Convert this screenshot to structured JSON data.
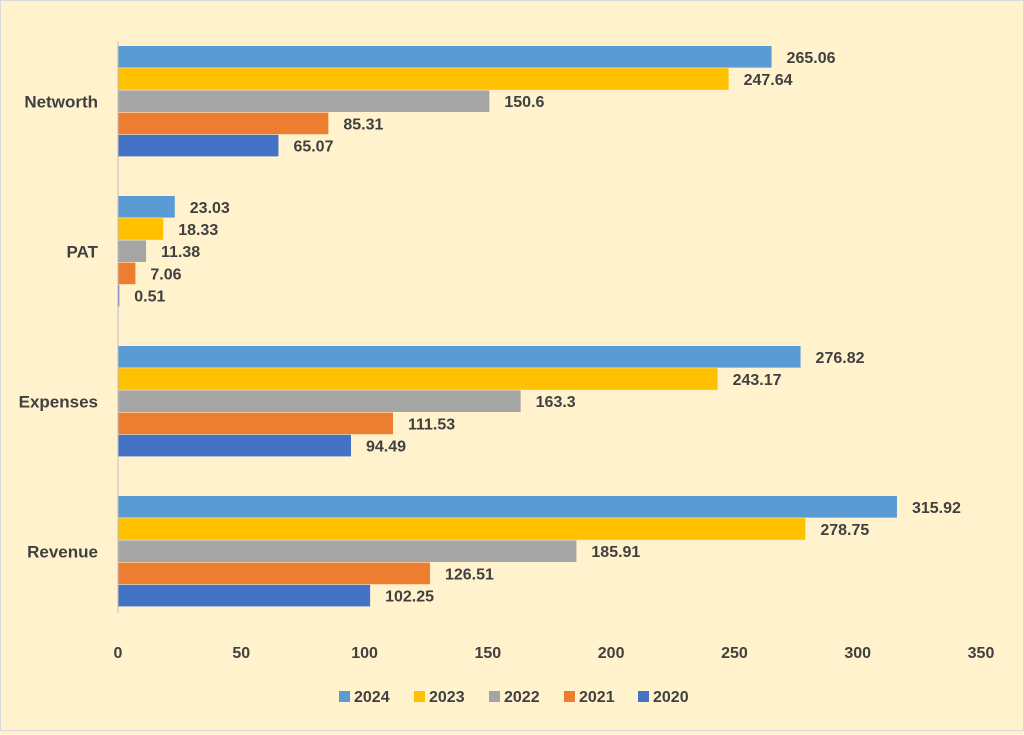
{
  "chart_data": {
    "type": "bar",
    "orientation": "horizontal",
    "categories": [
      "Networth",
      "PAT",
      "Expenses",
      "Revenue"
    ],
    "series": [
      {
        "name": "2024",
        "color": "#5b9bd5",
        "values": [
          265.06,
          23.03,
          276.82,
          315.92
        ],
        "labels": [
          "265.06",
          "23.03",
          "276.82",
          "315.92"
        ]
      },
      {
        "name": "2023",
        "color": "#ffc000",
        "values": [
          247.64,
          18.33,
          243.17,
          278.75
        ],
        "labels": [
          "247.64",
          "18.33",
          "243.17",
          "278.75"
        ]
      },
      {
        "name": "2022",
        "color": "#a5a5a5",
        "values": [
          150.6,
          11.38,
          163.3,
          185.91
        ],
        "labels": [
          "150.6",
          "11.38",
          "163.3",
          "185.91"
        ]
      },
      {
        "name": "2021",
        "color": "#ed7d31",
        "values": [
          85.31,
          7.06,
          111.53,
          126.51
        ],
        "labels": [
          "85.31",
          "7.06",
          "111.53",
          "126.51"
        ]
      },
      {
        "name": "2020",
        "color": "#4472c4",
        "values": [
          65.07,
          0.51,
          94.49,
          102.25
        ],
        "labels": [
          "65.07",
          "0.51",
          "94.49",
          "102.25"
        ]
      }
    ],
    "xlim": [
      0,
      350
    ],
    "x_ticks": [
      "0",
      "50",
      "100",
      "150",
      "200",
      "250",
      "300",
      "350"
    ],
    "grid": false,
    "legend_position": "bottom",
    "background_color": "#fff2cc"
  }
}
